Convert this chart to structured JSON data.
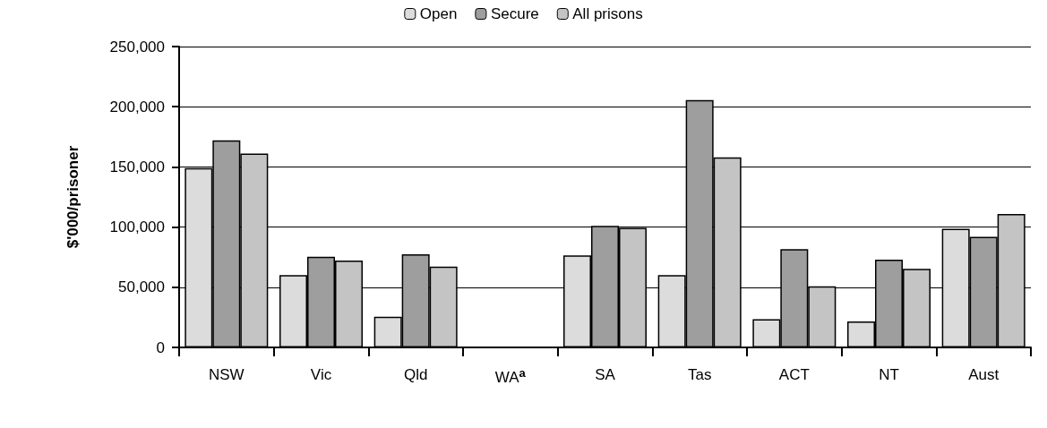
{
  "chart_data": {
    "type": "bar",
    "ylabel": "$'000/prisoner",
    "categories": [
      "NSW",
      "Vic",
      "Qld",
      "WA$^{a}$",
      "SA",
      "Tas",
      "ACT",
      "NT",
      "Aust"
    ],
    "series": [
      {
        "name": "Open",
        "color": "#dcdcdc",
        "values": [
          149000,
          60000,
          25500,
          null,
          76400,
          60000,
          23500,
          21600,
          98600
        ]
      },
      {
        "name": "Secure",
        "color": "#9e9e9e",
        "values": [
          172000,
          75400,
          77400,
          null,
          101000,
          205500,
          81600,
          73000,
          91800
        ]
      },
      {
        "name": "All prisons",
        "color": "#c4c4c4",
        "values": [
          161000,
          72200,
          67200,
          null,
          99300,
          158000,
          50800,
          65200,
          110800
        ]
      }
    ],
    "ylim": [
      0,
      250000
    ],
    "yticks": [
      {
        "value": 0,
        "label": "0"
      },
      {
        "value": 50000,
        "label": "50,000"
      },
      {
        "value": 100000,
        "label": "100,000"
      },
      {
        "value": 150000,
        "label": "150,000"
      },
      {
        "value": 200000,
        "label": "200,000"
      },
      {
        "value": 250000,
        "label": "250,000"
      }
    ],
    "grid": "y",
    "legend": "top"
  }
}
